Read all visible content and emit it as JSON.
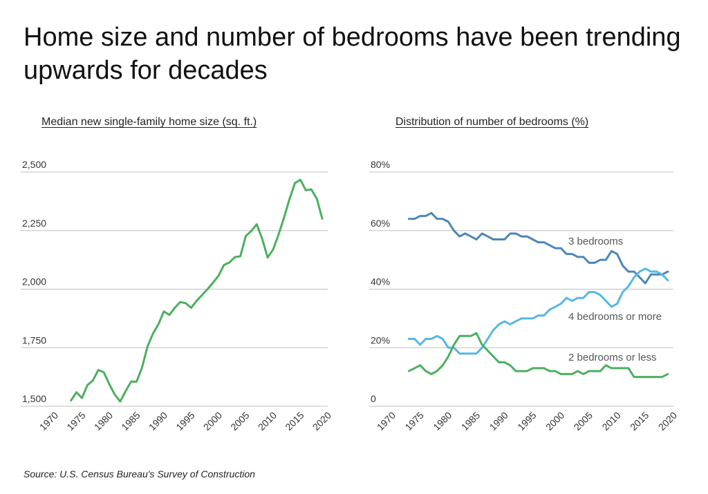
{
  "title": "Home size and number of bedrooms have been trending upwards for decades",
  "source": "Source:  U.S. Census Bureau's Survey of Construction",
  "colors": {
    "green": "#4caf5e",
    "dark_blue": "#4a86b8",
    "light_blue": "#56b6e6",
    "grid": "#bfbfbf",
    "text": "#333333",
    "label": "#555555"
  },
  "chart_data": [
    {
      "type": "line",
      "title": "Median new single-family home size (sq. ft.)",
      "xlim": [
        1970,
        2020
      ],
      "ylim": [
        1500,
        2500
      ],
      "xticks": [
        "1970",
        "1975",
        "1980",
        "1985",
        "1990",
        "1995",
        "2000",
        "2005",
        "2010",
        "2015",
        "2020"
      ],
      "yticks": [
        "1,500",
        "1,750",
        "2,000",
        "2,250",
        "2,500"
      ],
      "grid": true,
      "series": [
        {
          "x": [
            1973,
            1974,
            1975,
            1976,
            1977,
            1978,
            1979,
            1980,
            1981,
            1982,
            1983,
            1984,
            1985,
            1986,
            1987,
            1988,
            1989,
            1990,
            1991,
            1992,
            1993,
            1994,
            1995,
            1996,
            1997,
            1998,
            1999,
            2000,
            2001,
            2002,
            2003,
            2004,
            2005,
            2006,
            2007,
            2008,
            2009,
            2010,
            2011,
            2012,
            2013,
            2014,
            2015,
            2016,
            2017,
            2018,
            2019
          ],
          "values": [
            1525,
            1560,
            1535,
            1590,
            1610,
            1655,
            1645,
            1595,
            1550,
            1520,
            1565,
            1605,
            1605,
            1665,
            1755,
            1810,
            1850,
            1905,
            1890,
            1920,
            1945,
            1940,
            1920,
            1950,
            1975,
            2000,
            2028,
            2057,
            2103,
            2114,
            2137,
            2140,
            2227,
            2248,
            2277,
            2215,
            2135,
            2169,
            2233,
            2306,
            2384,
            2453,
            2467,
            2422,
            2426,
            2386,
            2301
          ]
        }
      ]
    },
    {
      "type": "line",
      "title": "Distribution of number of bedrooms (%)",
      "xlim": [
        1970,
        2020
      ],
      "ylim": [
        0,
        80
      ],
      "xticks": [
        "1970",
        "1975",
        "1980",
        "1985",
        "1990",
        "1995",
        "2000",
        "2005",
        "2010",
        "2015",
        "2020"
      ],
      "yticks": [
        "0",
        "20%",
        "40%",
        "60%",
        "80%"
      ],
      "grid": true,
      "series": [
        {
          "name": "3 bedrooms",
          "x": [
            1973,
            1974,
            1975,
            1976,
            1977,
            1978,
            1979,
            1980,
            1981,
            1982,
            1983,
            1984,
            1985,
            1986,
            1987,
            1988,
            1989,
            1990,
            1991,
            1992,
            1993,
            1994,
            1995,
            1996,
            1997,
            1998,
            1999,
            2000,
            2001,
            2002,
            2003,
            2004,
            2005,
            2006,
            2007,
            2008,
            2009,
            2010,
            2011,
            2012,
            2013,
            2014,
            2015,
            2016,
            2017,
            2018,
            2019
          ],
          "values": [
            64,
            64,
            65,
            65,
            66,
            64,
            64,
            63,
            60,
            58,
            59,
            58,
            57,
            59,
            58,
            57,
            57,
            57,
            59,
            59,
            58,
            58,
            57,
            56,
            56,
            55,
            54,
            54,
            52,
            52,
            51,
            51,
            49,
            49,
            50,
            50,
            53,
            52,
            48,
            46,
            46,
            44,
            42,
            45,
            45,
            45,
            46
          ]
        },
        {
          "name": "4 bedrooms or more",
          "x": [
            1973,
            1974,
            1975,
            1976,
            1977,
            1978,
            1979,
            1980,
            1981,
            1982,
            1983,
            1984,
            1985,
            1986,
            1987,
            1988,
            1989,
            1990,
            1991,
            1992,
            1993,
            1994,
            1995,
            1996,
            1997,
            1998,
            1999,
            2000,
            2001,
            2002,
            2003,
            2004,
            2005,
            2006,
            2007,
            2008,
            2009,
            2010,
            2011,
            2012,
            2013,
            2014,
            2015,
            2016,
            2017,
            2018,
            2019
          ],
          "values": [
            23,
            23,
            21,
            23,
            23,
            24,
            23,
            20,
            20,
            18,
            18,
            18,
            18,
            20,
            23,
            26,
            28,
            29,
            28,
            29,
            30,
            30,
            30,
            31,
            31,
            33,
            34,
            35,
            37,
            36,
            37,
            37,
            39,
            39,
            38,
            36,
            34,
            35,
            39,
            41,
            44,
            46,
            47,
            46,
            46,
            45,
            43
          ]
        },
        {
          "name": "2 bedrooms or less",
          "x": [
            1973,
            1974,
            1975,
            1976,
            1977,
            1978,
            1979,
            1980,
            1981,
            1982,
            1983,
            1984,
            1985,
            1986,
            1987,
            1988,
            1989,
            1990,
            1991,
            1992,
            1993,
            1994,
            1995,
            1996,
            1997,
            1998,
            1999,
            2000,
            2001,
            2002,
            2003,
            2004,
            2005,
            2006,
            2007,
            2008,
            2009,
            2010,
            2011,
            2012,
            2013,
            2014,
            2015,
            2016,
            2017,
            2018,
            2019
          ],
          "values": [
            12,
            13,
            14,
            12,
            11,
            12,
            14,
            17,
            21,
            24,
            24,
            24,
            25,
            21,
            19,
            17,
            15,
            15,
            14,
            12,
            12,
            12,
            13,
            13,
            13,
            12,
            12,
            11,
            11,
            11,
            12,
            11,
            12,
            12,
            12,
            14,
            13,
            13,
            13,
            13,
            10,
            10,
            10,
            10,
            10,
            10,
            11
          ]
        }
      ]
    }
  ]
}
